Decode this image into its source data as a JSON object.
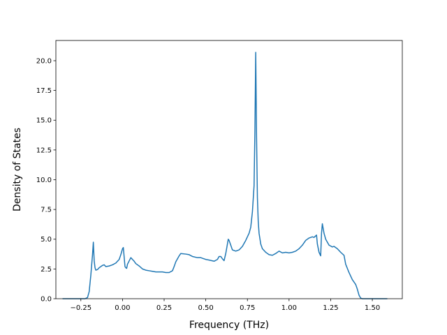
{
  "chart_data": {
    "type": "line",
    "title": "",
    "xlabel": "Frequency (THz)",
    "ylabel": "Density of States",
    "xlim": [
      -0.4,
      1.68
    ],
    "ylim": [
      0,
      21.7
    ],
    "grid": false,
    "legend": "none",
    "x_ticks": [
      -0.25,
      0.0,
      0.25,
      0.5,
      0.75,
      1.0,
      1.25,
      1.5
    ],
    "x_tick_labels": [
      "−0.25",
      "0.00",
      "0.25",
      "0.50",
      "0.75",
      "1.00",
      "1.25",
      "1.50"
    ],
    "y_ticks": [
      0,
      2.5,
      5,
      7.5,
      10,
      12.5,
      15,
      17.5,
      20
    ],
    "y_tick_labels": [
      "0.0",
      "2.5",
      "5.0",
      "7.5",
      "10.0",
      "12.5",
      "15.0",
      "17.5",
      "20.0"
    ],
    "series": [
      {
        "color": "#1f77b4",
        "points": [
          [
            -0.36,
            0.0
          ],
          [
            -0.3,
            0.0
          ],
          [
            -0.25,
            0.0
          ],
          [
            -0.225,
            0.0
          ],
          [
            -0.21,
            0.1
          ],
          [
            -0.2,
            0.6
          ],
          [
            -0.19,
            2.0
          ],
          [
            -0.18,
            3.7
          ],
          [
            -0.175,
            4.75
          ],
          [
            -0.17,
            3.2
          ],
          [
            -0.165,
            2.6
          ],
          [
            -0.16,
            2.4
          ],
          [
            -0.15,
            2.45
          ],
          [
            -0.14,
            2.6
          ],
          [
            -0.12,
            2.8
          ],
          [
            -0.11,
            2.85
          ],
          [
            -0.1,
            2.7
          ],
          [
            -0.08,
            2.75
          ],
          [
            -0.06,
            2.85
          ],
          [
            -0.04,
            3.0
          ],
          [
            -0.02,
            3.3
          ],
          [
            -0.01,
            3.7
          ],
          [
            0.0,
            4.2
          ],
          [
            0.005,
            4.3
          ],
          [
            0.01,
            3.5
          ],
          [
            0.015,
            2.7
          ],
          [
            0.02,
            2.6
          ],
          [
            0.025,
            2.55
          ],
          [
            0.03,
            2.9
          ],
          [
            0.05,
            3.45
          ],
          [
            0.06,
            3.3
          ],
          [
            0.07,
            3.15
          ],
          [
            0.08,
            2.95
          ],
          [
            0.1,
            2.75
          ],
          [
            0.12,
            2.5
          ],
          [
            0.14,
            2.4
          ],
          [
            0.16,
            2.35
          ],
          [
            0.18,
            2.3
          ],
          [
            0.2,
            2.25
          ],
          [
            0.22,
            2.25
          ],
          [
            0.24,
            2.25
          ],
          [
            0.26,
            2.2
          ],
          [
            0.28,
            2.2
          ],
          [
            0.3,
            2.35
          ],
          [
            0.31,
            2.7
          ],
          [
            0.32,
            3.1
          ],
          [
            0.33,
            3.35
          ],
          [
            0.34,
            3.6
          ],
          [
            0.35,
            3.8
          ],
          [
            0.38,
            3.75
          ],
          [
            0.4,
            3.7
          ],
          [
            0.42,
            3.55
          ],
          [
            0.45,
            3.45
          ],
          [
            0.47,
            3.45
          ],
          [
            0.48,
            3.4
          ],
          [
            0.5,
            3.3
          ],
          [
            0.52,
            3.25
          ],
          [
            0.55,
            3.15
          ],
          [
            0.57,
            3.3
          ],
          [
            0.58,
            3.55
          ],
          [
            0.59,
            3.55
          ],
          [
            0.6,
            3.35
          ],
          [
            0.61,
            3.2
          ],
          [
            0.62,
            3.8
          ],
          [
            0.63,
            4.6
          ],
          [
            0.635,
            5.0
          ],
          [
            0.64,
            4.9
          ],
          [
            0.65,
            4.5
          ],
          [
            0.66,
            4.1
          ],
          [
            0.68,
            4.0
          ],
          [
            0.7,
            4.1
          ],
          [
            0.72,
            4.4
          ],
          [
            0.74,
            4.9
          ],
          [
            0.76,
            5.5
          ],
          [
            0.77,
            6.0
          ],
          [
            0.78,
            7.3
          ],
          [
            0.79,
            9.5
          ],
          [
            0.795,
            14.0
          ],
          [
            0.8,
            20.7
          ],
          [
            0.805,
            13.5
          ],
          [
            0.81,
            8.5
          ],
          [
            0.815,
            6.5
          ],
          [
            0.82,
            5.5
          ],
          [
            0.83,
            4.6
          ],
          [
            0.84,
            4.2
          ],
          [
            0.86,
            3.9
          ],
          [
            0.88,
            3.7
          ],
          [
            0.9,
            3.65
          ],
          [
            0.92,
            3.8
          ],
          [
            0.94,
            4.0
          ],
          [
            0.96,
            3.85
          ],
          [
            0.98,
            3.9
          ],
          [
            1.0,
            3.85
          ],
          [
            1.02,
            3.9
          ],
          [
            1.04,
            4.0
          ],
          [
            1.06,
            4.2
          ],
          [
            1.08,
            4.5
          ],
          [
            1.1,
            4.9
          ],
          [
            1.12,
            5.1
          ],
          [
            1.14,
            5.2
          ],
          [
            1.15,
            5.15
          ],
          [
            1.165,
            5.35
          ],
          [
            1.17,
            4.6
          ],
          [
            1.18,
            3.9
          ],
          [
            1.19,
            3.6
          ],
          [
            1.195,
            5.5
          ],
          [
            1.2,
            6.3
          ],
          [
            1.21,
            5.5
          ],
          [
            1.22,
            5.0
          ],
          [
            1.24,
            4.5
          ],
          [
            1.26,
            4.35
          ],
          [
            1.27,
            4.4
          ],
          [
            1.29,
            4.2
          ],
          [
            1.31,
            3.9
          ],
          [
            1.33,
            3.65
          ],
          [
            1.34,
            2.9
          ],
          [
            1.36,
            2.2
          ],
          [
            1.38,
            1.6
          ],
          [
            1.4,
            1.2
          ],
          [
            1.41,
            0.8
          ],
          [
            1.42,
            0.3
          ],
          [
            1.43,
            0.05
          ],
          [
            1.44,
            0.0
          ],
          [
            1.5,
            0.0
          ],
          [
            1.59,
            0.0
          ]
        ]
      }
    ]
  }
}
